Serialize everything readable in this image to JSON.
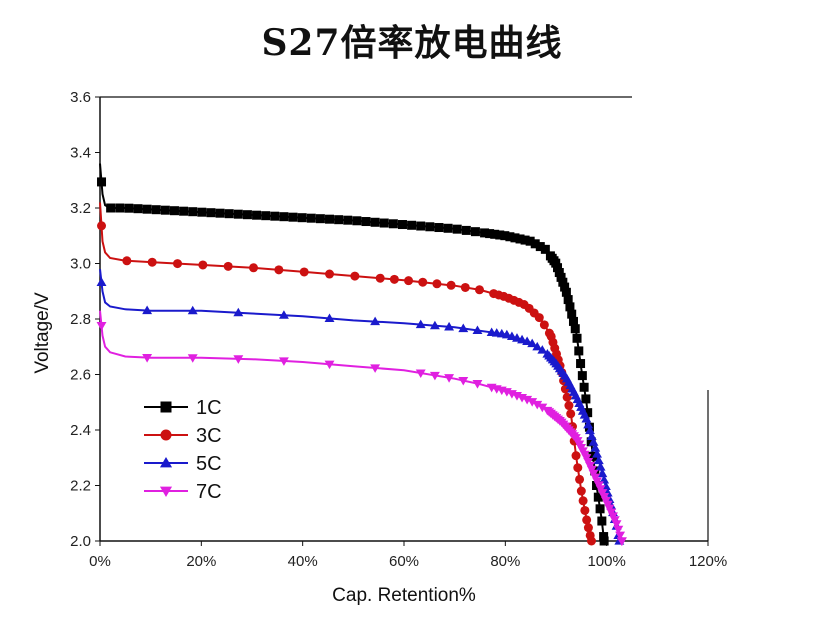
{
  "chart_data": {
    "type": "line",
    "title": "S27倍率放电曲线",
    "xlabel": "Cap. Retention%",
    "ylabel": "Voltage/V",
    "xlim": [
      0,
      120
    ],
    "ylim": [
      2.0,
      3.6
    ],
    "x_tick_labels": [
      "0%",
      "20%",
      "40%",
      "60%",
      "80%",
      "100%",
      "120%"
    ],
    "y_tick_labels": [
      "2.0",
      "2.2",
      "2.4",
      "2.6",
      "2.8",
      "3.0",
      "3.2",
      "3.4",
      "3.6"
    ],
    "legend_position": "bottom-left",
    "grid": false,
    "series": [
      {
        "name": "1C",
        "color": "#000000",
        "marker": "square",
        "points": [
          [
            0,
            3.36
          ],
          [
            0.5,
            3.25
          ],
          [
            1,
            3.21
          ],
          [
            2,
            3.2
          ],
          [
            5,
            3.2
          ],
          [
            10,
            3.195
          ],
          [
            20,
            3.185
          ],
          [
            30,
            3.175
          ],
          [
            40,
            3.165
          ],
          [
            50,
            3.155
          ],
          [
            60,
            3.14
          ],
          [
            70,
            3.125
          ],
          [
            80,
            3.1
          ],
          [
            85,
            3.08
          ],
          [
            88,
            3.05
          ],
          [
            90,
            3.0
          ],
          [
            92,
            2.9
          ],
          [
            94,
            2.75
          ],
          [
            95,
            2.62
          ],
          [
            96,
            2.5
          ],
          [
            97,
            2.35
          ],
          [
            98,
            2.2
          ],
          [
            99,
            2.08
          ],
          [
            99.5,
            2.0
          ]
        ]
      },
      {
        "name": "3C",
        "color": "#cc1111",
        "marker": "circle",
        "points": [
          [
            0,
            3.22
          ],
          [
            0.5,
            3.08
          ],
          [
            1,
            3.04
          ],
          [
            2,
            3.02
          ],
          [
            5,
            3.01
          ],
          [
            10,
            3.005
          ],
          [
            20,
            2.995
          ],
          [
            30,
            2.985
          ],
          [
            40,
            2.97
          ],
          [
            50,
            2.955
          ],
          [
            60,
            2.94
          ],
          [
            70,
            2.92
          ],
          [
            75,
            2.905
          ],
          [
            80,
            2.88
          ],
          [
            84,
            2.85
          ],
          [
            87,
            2.8
          ],
          [
            89,
            2.74
          ],
          [
            91,
            2.62
          ],
          [
            93,
            2.45
          ],
          [
            94,
            2.3
          ],
          [
            95,
            2.18
          ],
          [
            96,
            2.08
          ],
          [
            97,
            2.0
          ]
        ]
      },
      {
        "name": "5C",
        "color": "#1a1acc",
        "marker": "triangle-up",
        "points": [
          [
            0,
            2.98
          ],
          [
            0.5,
            2.9
          ],
          [
            1,
            2.86
          ],
          [
            2,
            2.845
          ],
          [
            5,
            2.835
          ],
          [
            10,
            2.83
          ],
          [
            20,
            2.83
          ],
          [
            30,
            2.82
          ],
          [
            40,
            2.81
          ],
          [
            50,
            2.795
          ],
          [
            60,
            2.785
          ],
          [
            70,
            2.77
          ],
          [
            80,
            2.745
          ],
          [
            85,
            2.715
          ],
          [
            88,
            2.68
          ],
          [
            90,
            2.64
          ],
          [
            92,
            2.59
          ],
          [
            94,
            2.52
          ],
          [
            96,
            2.44
          ],
          [
            98,
            2.32
          ],
          [
            99.5,
            2.22
          ],
          [
            101,
            2.12
          ],
          [
            102,
            2.05
          ],
          [
            102.5,
            2.0
          ]
        ]
      },
      {
        "name": "7C",
        "color": "#e020e0",
        "marker": "triangle-down",
        "points": [
          [
            0,
            2.83
          ],
          [
            0.5,
            2.74
          ],
          [
            1,
            2.7
          ],
          [
            2,
            2.68
          ],
          [
            5,
            2.665
          ],
          [
            10,
            2.66
          ],
          [
            20,
            2.66
          ],
          [
            30,
            2.655
          ],
          [
            40,
            2.645
          ],
          [
            50,
            2.63
          ],
          [
            60,
            2.615
          ],
          [
            70,
            2.585
          ],
          [
            75,
            2.565
          ],
          [
            80,
            2.54
          ],
          [
            85,
            2.505
          ],
          [
            88,
            2.475
          ],
          [
            91,
            2.43
          ],
          [
            94,
            2.37
          ],
          [
            96,
            2.3
          ],
          [
            98,
            2.22
          ],
          [
            100,
            2.14
          ],
          [
            102,
            2.06
          ],
          [
            103,
            2.0
          ]
        ]
      }
    ]
  }
}
